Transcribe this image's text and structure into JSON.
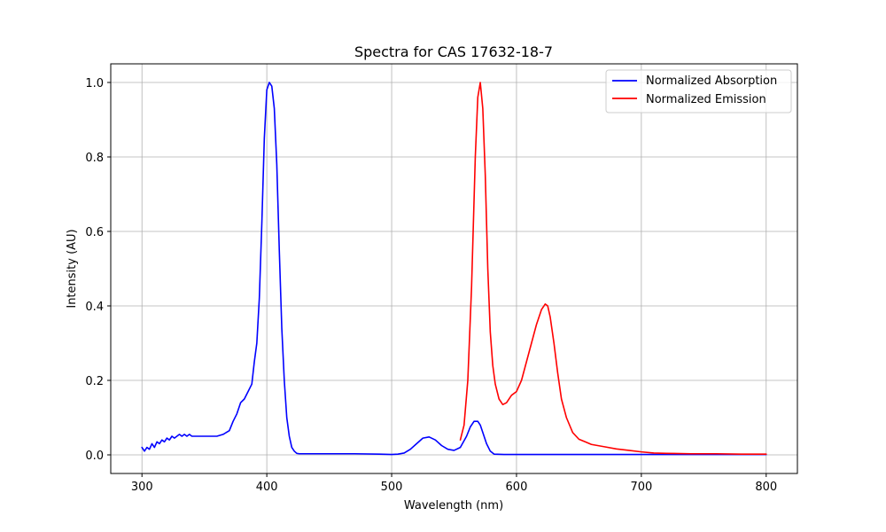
{
  "chart_data": {
    "type": "line",
    "title": "Spectra for CAS 17632-18-7",
    "xlabel": "Wavelength (nm)",
    "ylabel": "Intensity (AU)",
    "xlim": [
      275,
      825
    ],
    "ylim": [
      -0.05,
      1.05
    ],
    "xticks": [
      300,
      400,
      500,
      600,
      700,
      800
    ],
    "yticks": [
      0.0,
      0.2,
      0.4,
      0.6,
      0.8,
      1.0
    ],
    "xtick_labels": [
      "300",
      "400",
      "500",
      "600",
      "700",
      "800"
    ],
    "ytick_labels": [
      "0.0",
      "0.2",
      "0.4",
      "0.6",
      "0.8",
      "1.0"
    ],
    "grid": true,
    "legend_position": "top-right",
    "series": [
      {
        "name": "Normalized Absorption",
        "color": "#0000ff",
        "x": [
          300,
          302,
          304,
          306,
          308,
          310,
          312,
          314,
          316,
          318,
          320,
          322,
          324,
          326,
          328,
          330,
          332,
          334,
          336,
          338,
          340,
          345,
          350,
          355,
          360,
          365,
          370,
          373,
          376,
          379,
          382,
          385,
          388,
          390,
          392,
          394,
          396,
          398,
          400,
          402,
          404,
          406,
          408,
          410,
          412,
          414,
          416,
          418,
          420,
          422,
          424,
          426,
          428,
          435,
          450,
          470,
          490,
          500,
          505,
          510,
          515,
          520,
          525,
          530,
          535,
          540,
          545,
          550,
          555,
          560,
          563,
          566,
          569,
          571,
          573,
          576,
          579,
          582,
          590,
          600,
          620,
          650,
          700,
          750,
          800
        ],
        "y": [
          0.02,
          0.01,
          0.02,
          0.015,
          0.03,
          0.02,
          0.035,
          0.03,
          0.04,
          0.035,
          0.045,
          0.04,
          0.05,
          0.045,
          0.05,
          0.055,
          0.05,
          0.055,
          0.05,
          0.055,
          0.05,
          0.05,
          0.05,
          0.05,
          0.05,
          0.055,
          0.065,
          0.09,
          0.11,
          0.14,
          0.15,
          0.17,
          0.19,
          0.25,
          0.3,
          0.42,
          0.62,
          0.85,
          0.98,
          1.0,
          0.99,
          0.93,
          0.78,
          0.55,
          0.34,
          0.2,
          0.1,
          0.05,
          0.02,
          0.01,
          0.004,
          0.003,
          0.003,
          0.003,
          0.003,
          0.003,
          0.002,
          0.001,
          0.002,
          0.005,
          0.015,
          0.03,
          0.045,
          0.048,
          0.04,
          0.025,
          0.015,
          0.012,
          0.02,
          0.05,
          0.075,
          0.09,
          0.09,
          0.08,
          0.06,
          0.03,
          0.01,
          0.002,
          0.001,
          0.001,
          0.001,
          0.001,
          0.001,
          0.001,
          0.001
        ]
      },
      {
        "name": "Normalized Emission",
        "color": "#ff0000",
        "x": [
          555,
          558,
          561,
          564,
          567,
          569,
          571,
          573,
          575,
          577,
          579,
          581,
          583,
          586,
          589,
          592,
          596,
          600,
          604,
          608,
          612,
          616,
          620,
          623,
          625,
          627,
          630,
          633,
          636,
          640,
          645,
          650,
          655,
          660,
          670,
          680,
          690,
          700,
          710,
          720,
          740,
          760,
          780,
          800
        ],
        "y": [
          0.04,
          0.08,
          0.2,
          0.45,
          0.8,
          0.96,
          1.0,
          0.93,
          0.75,
          0.5,
          0.33,
          0.24,
          0.19,
          0.15,
          0.135,
          0.14,
          0.16,
          0.17,
          0.2,
          0.25,
          0.3,
          0.35,
          0.39,
          0.405,
          0.4,
          0.37,
          0.3,
          0.22,
          0.15,
          0.1,
          0.06,
          0.042,
          0.035,
          0.028,
          0.022,
          0.016,
          0.012,
          0.008,
          0.005,
          0.004,
          0.003,
          0.003,
          0.002,
          0.002
        ]
      }
    ]
  }
}
